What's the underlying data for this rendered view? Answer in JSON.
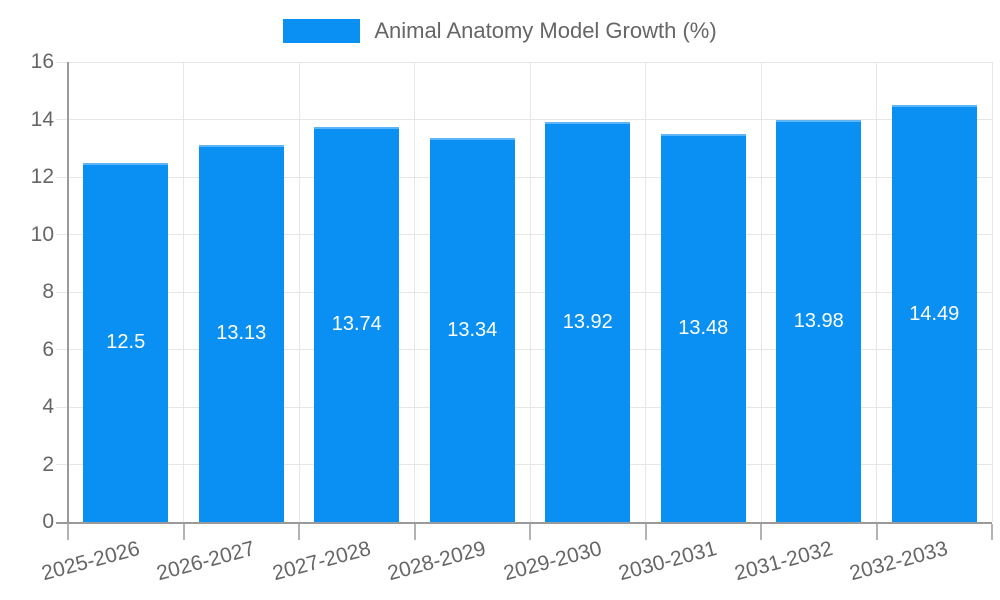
{
  "legend": {
    "label": "Animal Anatomy Model Growth (%)"
  },
  "colors": {
    "bar": "#0a8ff2",
    "bar_border": "#5db4f6",
    "grid": "#e6e6e6",
    "axis": "#9a9a9a",
    "tick": "#b3b3b3",
    "label_text": "#666666",
    "value_text": "#ffffff",
    "background": "#ffffff"
  },
  "chart_data": {
    "type": "bar",
    "title": "Animal Anatomy Model Growth (%)",
    "categories": [
      "2025-2026",
      "2026-2027",
      "2027-2028",
      "2028-2029",
      "2029-2030",
      "2030-2031",
      "2031-2032",
      "2032-2033"
    ],
    "values": [
      12.5,
      13.13,
      13.74,
      13.34,
      13.92,
      13.48,
      13.98,
      14.49
    ],
    "value_labels": [
      "12.5",
      "13.13",
      "13.74",
      "13.34",
      "13.92",
      "13.48",
      "13.98",
      "14.49"
    ],
    "xlabel": "",
    "ylabel": "",
    "ylim": [
      0,
      16
    ],
    "yticks": [
      0,
      2,
      4,
      6,
      8,
      10,
      12,
      14,
      16
    ],
    "grid": true,
    "legend_position": "top",
    "value_label_position": "inside-middle",
    "x_label_rotation_deg": -15
  }
}
